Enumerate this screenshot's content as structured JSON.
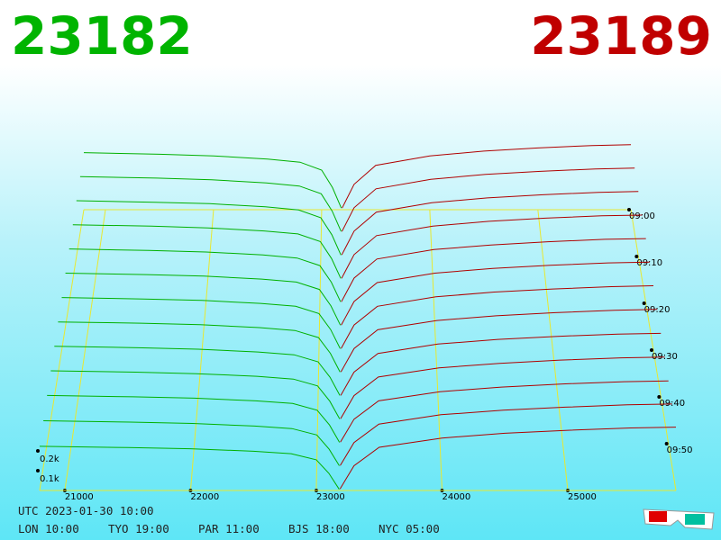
{
  "chart_data": {
    "type": "depth3d",
    "bid_price": 23182,
    "ask_price": 23189,
    "bid_color": "#00b000",
    "ask_color": "#b00000",
    "grid_color": "#e8e830",
    "xlim": [
      20800,
      25860
    ],
    "xticks": [
      21000,
      22000,
      23000,
      24000,
      25000
    ],
    "tlim": [
      0,
      60
    ],
    "tticks": [
      {
        "value": 0,
        "label": "09:00"
      },
      {
        "value": 10,
        "label": "09:10"
      },
      {
        "value": 20,
        "label": "09:20"
      },
      {
        "value": 30,
        "label": "09:30"
      },
      {
        "value": 40,
        "label": "09:40"
      },
      {
        "value": 50,
        "label": "09:50"
      }
    ],
    "zticks": [
      {
        "value": 100,
        "label": "0.1k"
      },
      {
        "value": 200,
        "label": "0.2k"
      }
    ],
    "bid_prices": [
      20800,
      21500,
      22000,
      22500,
      22800,
      23000,
      23100,
      23182
    ],
    "ask_prices": [
      23189,
      23300,
      23500,
      24000,
      24500,
      25000,
      25500,
      25860
    ],
    "snapshots": [
      {
        "t": 0,
        "bids": [
          360,
          350,
          340,
          320,
          300,
          250,
          140,
          10
        ],
        "asks": [
          10,
          160,
          280,
          340,
          370,
          390,
          405,
          410
        ]
      },
      {
        "t": 5,
        "bids": [
          349,
          340,
          330,
          310,
          291,
          243,
          136,
          10
        ],
        "asks": [
          10,
          157,
          274,
          333,
          363,
          382,
          397,
          402
        ]
      },
      {
        "t": 10,
        "bids": [
          338,
          329,
          320,
          301,
          282,
          235,
          132,
          9
        ],
        "asks": [
          10,
          154,
          269,
          326,
          355,
          374,
          389,
          394
        ]
      },
      {
        "t": 15,
        "bids": [
          328,
          319,
          309,
          291,
          273,
          228,
          127,
          9
        ],
        "asks": [
          9,
          150,
          263,
          320,
          348,
          367,
          381,
          385
        ]
      },
      {
        "t": 20,
        "bids": [
          317,
          308,
          299,
          282,
          264,
          220,
          123,
          9
        ],
        "asks": [
          9,
          147,
          258,
          313,
          340,
          359,
          373,
          377
        ]
      },
      {
        "t": 25,
        "bids": [
          306,
          298,
          289,
          272,
          255,
          213,
          119,
          9
        ],
        "asks": [
          9,
          144,
          252,
          306,
          333,
          351,
          365,
          369
        ]
      },
      {
        "t": 30,
        "bids": [
          295,
          287,
          279,
          262,
          246,
          205,
          115,
          8
        ],
        "asks": [
          9,
          141,
          246,
          299,
          326,
          343,
          356,
          361
        ]
      },
      {
        "t": 35,
        "bids": [
          284,
          277,
          269,
          253,
          237,
          198,
          111,
          8
        ],
        "asks": [
          9,
          138,
          241,
          292,
          318,
          335,
          348,
          353
        ]
      },
      {
        "t": 40,
        "bids": [
          274,
          266,
          258,
          243,
          228,
          190,
          106,
          8
        ],
        "asks": [
          8,
          134,
          235,
          286,
          311,
          328,
          340,
          344
        ]
      },
      {
        "t": 45,
        "bids": [
          263,
          256,
          248,
          234,
          219,
          183,
          102,
          7
        ],
        "asks": [
          8,
          131,
          230,
          279,
          303,
          320,
          332,
          336
        ]
      },
      {
        "t": 50,
        "bids": [
          252,
          245,
          238,
          224,
          210,
          175,
          98,
          7
        ],
        "asks": [
          8,
          128,
          224,
          272,
          296,
          312,
          324,
          328
        ]
      },
      {
        "t": 55,
        "bids": [
          238,
          231,
          224,
          211,
          198,
          165,
          92,
          7
        ],
        "asks": [
          8,
          126,
          221,
          269,
          292,
          308,
          320,
          324
        ]
      },
      {
        "t": 60,
        "bids": [
          223,
          217,
          211,
          198,
          186,
          155,
          87,
          6
        ],
        "asks": [
          8,
          125,
          218,
          265,
          289,
          304,
          316,
          320
        ]
      }
    ]
  },
  "footer": {
    "utc": "UTC 2023-01-30 10:00",
    "clocks": [
      "LON 10:00",
      "TYO 19:00",
      "PAR 11:00",
      "BJS 18:00",
      "NYC 05:00"
    ]
  }
}
